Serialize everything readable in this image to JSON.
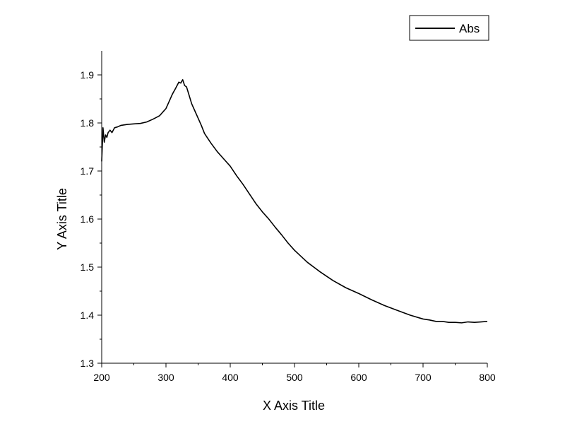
{
  "chart_data": {
    "type": "line",
    "title": "",
    "xlabel": "X Axis Title",
    "ylabel": "Y Axis Title",
    "xlim": [
      200,
      800
    ],
    "ylim": [
      1.3,
      1.95
    ],
    "xticks": [
      "200",
      "300",
      "400",
      "500",
      "600",
      "700",
      "800"
    ],
    "yticks": [
      "1.3",
      "1.4",
      "1.5",
      "1.6",
      "1.7",
      "1.8",
      "1.9"
    ],
    "grid": false,
    "legend": "top-right",
    "line_color": "#000000",
    "series": [
      {
        "name": "Abs",
        "x": [
          200,
          202,
          204,
          206,
          208,
          210,
          213,
          216,
          220,
          225,
          230,
          240,
          250,
          260,
          270,
          280,
          290,
          300,
          305,
          310,
          315,
          320,
          323,
          326,
          329,
          332,
          335,
          340,
          345,
          350,
          355,
          360,
          370,
          380,
          390,
          400,
          410,
          420,
          430,
          440,
          450,
          460,
          470,
          480,
          490,
          500,
          520,
          540,
          560,
          580,
          600,
          620,
          640,
          660,
          680,
          700,
          710,
          720,
          730,
          740,
          750,
          760,
          770,
          780,
          790,
          800
        ],
        "y": [
          1.72,
          1.79,
          1.76,
          1.775,
          1.77,
          1.78,
          1.785,
          1.78,
          1.79,
          1.792,
          1.795,
          1.797,
          1.798,
          1.799,
          1.802,
          1.808,
          1.815,
          1.83,
          1.845,
          1.86,
          1.872,
          1.885,
          1.883,
          1.89,
          1.878,
          1.875,
          1.862,
          1.84,
          1.825,
          1.81,
          1.795,
          1.778,
          1.758,
          1.74,
          1.725,
          1.71,
          1.69,
          1.672,
          1.652,
          1.632,
          1.615,
          1.6,
          1.583,
          1.567,
          1.55,
          1.535,
          1.51,
          1.49,
          1.472,
          1.457,
          1.445,
          1.432,
          1.42,
          1.41,
          1.4,
          1.392,
          1.39,
          1.387,
          1.387,
          1.385,
          1.385,
          1.384,
          1.386,
          1.385,
          1.386,
          1.387
        ]
      }
    ]
  }
}
